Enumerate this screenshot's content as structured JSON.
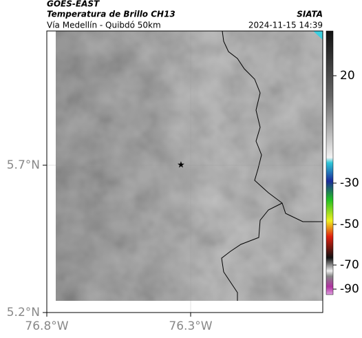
{
  "header": {
    "satellite": "GOES-EAST",
    "product": "Temperatura de Brillo CH13",
    "region": "Vía Medellín - Quibdó 50km",
    "source": "SIATA",
    "timestamp": "2024-11-15 14:39"
  },
  "map": {
    "lat_ticks": [
      {
        "value": 5.7,
        "label": "5.7°N"
      },
      {
        "value": 5.2,
        "label": "5.2°N"
      }
    ],
    "lon_ticks": [
      {
        "value": -76.8,
        "label": "76.8°W"
      },
      {
        "value": -76.3,
        "label": "76.3°W"
      }
    ]
  },
  "colorbar": {
    "ticks": [
      20,
      -30,
      -50,
      -70,
      -90
    ]
  }
}
